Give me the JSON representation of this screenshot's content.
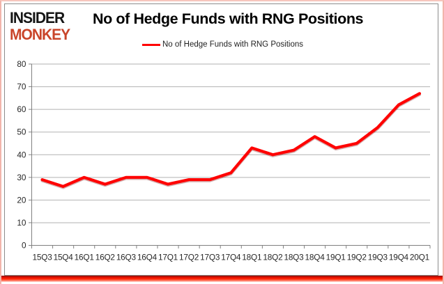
{
  "logo": {
    "line1": "INSIDER",
    "line2": "MONKEY"
  },
  "header": {
    "title": "No of Hedge Funds with RNG Positions"
  },
  "legend": {
    "label": "No of Hedge Funds with RNG Positions"
  },
  "chart_data": {
    "type": "line",
    "title": "No of Hedge Funds with RNG Positions",
    "categories": [
      "15Q3",
      "15Q4",
      "16Q1",
      "16Q2",
      "16Q3",
      "16Q4",
      "17Q1",
      "17Q2",
      "17Q3",
      "17Q4",
      "18Q1",
      "18Q2",
      "18Q3",
      "18Q4",
      "19Q1",
      "19Q2",
      "19Q3",
      "19Q4",
      "20Q1"
    ],
    "series": [
      {
        "name": "No of Hedge Funds with RNG Positions",
        "color": "#ff0000",
        "values": [
          29,
          26,
          30,
          27,
          30,
          30,
          27,
          29,
          29,
          32,
          43,
          40,
          42,
          48,
          43,
          45,
          52,
          62,
          67
        ]
      }
    ],
    "xlabel": "",
    "ylabel": "",
    "ylim": [
      0,
      80
    ],
    "yticks": [
      0,
      10,
      20,
      30,
      40,
      50,
      60,
      70,
      80
    ],
    "grid": true,
    "legend_position": "top-center"
  },
  "colors": {
    "line_red": "#ff0000",
    "line_shadow": "#7a0000",
    "logo_black": "#151515",
    "logo_red": "#c9452a",
    "outer_border_pink": "#f2b5ab",
    "frame_gray": "#8c8c8c",
    "grid_gray": "#b2b2b2",
    "axis_gray": "#808080",
    "tick_text": "#262626",
    "bottom_glow_red": "#ff1e00"
  }
}
